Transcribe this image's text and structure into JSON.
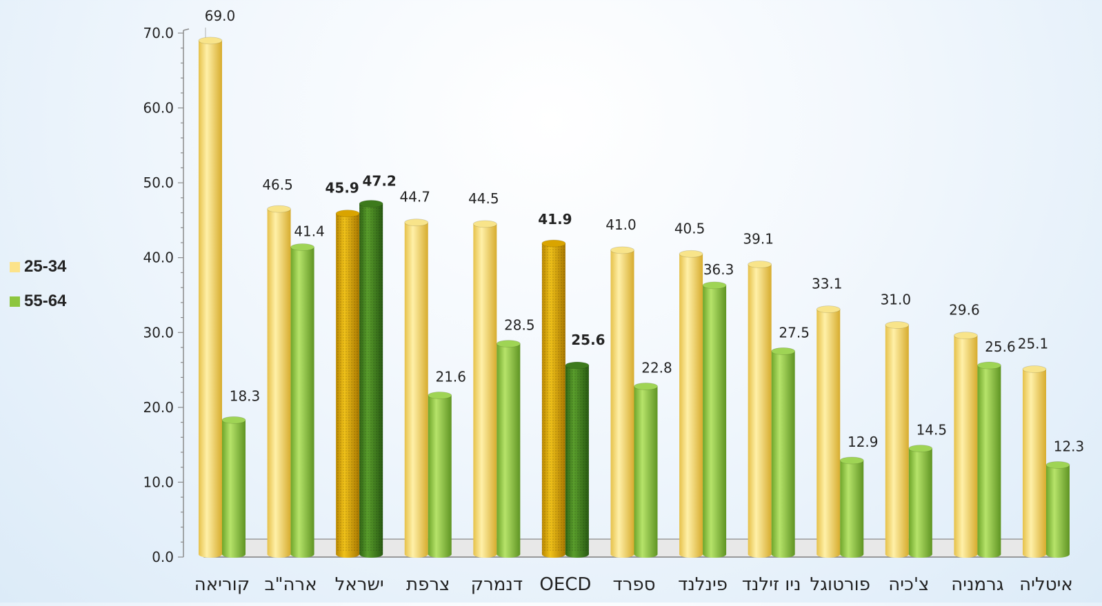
{
  "chart_data": {
    "type": "bar",
    "categories": [
      "קוריאה",
      "ארה\"ב",
      "ישראל",
      "צרפת",
      "דנמרק",
      "OECD",
      "ספרד",
      "פינלנד",
      "ניו זילנד",
      "פורטוגל",
      "צ'כיה",
      "גרמניה",
      "איטליה"
    ],
    "series": [
      {
        "name": "25-34",
        "values": [
          69.0,
          46.5,
          45.9,
          44.7,
          44.5,
          41.9,
          41.0,
          40.5,
          39.1,
          33.1,
          31.0,
          29.6,
          25.1
        ]
      },
      {
        "name": "55-64",
        "values": [
          18.3,
          41.4,
          47.2,
          21.6,
          28.5,
          25.6,
          22.8,
          36.3,
          27.5,
          12.9,
          14.5,
          25.6,
          12.3
        ]
      }
    ],
    "highlighted_categories": [
      "ישראל",
      "OECD"
    ],
    "ylim": [
      0,
      70
    ],
    "yticks": [
      "0.0",
      "10.0",
      "20.0",
      "30.0",
      "40.0",
      "50.0",
      "60.0",
      "70.0"
    ],
    "legend_position": "left",
    "colors": {
      "series1": "#f5d96b",
      "series2": "#8dc63f",
      "series1_highlight": "#d9a400",
      "series2_highlight": "#3f7d1e",
      "axis": "#888888"
    }
  },
  "legend": {
    "items": [
      {
        "label": "25-34",
        "color": "#fce38a"
      },
      {
        "label": "55-64",
        "color": "#8dc63f"
      }
    ]
  }
}
